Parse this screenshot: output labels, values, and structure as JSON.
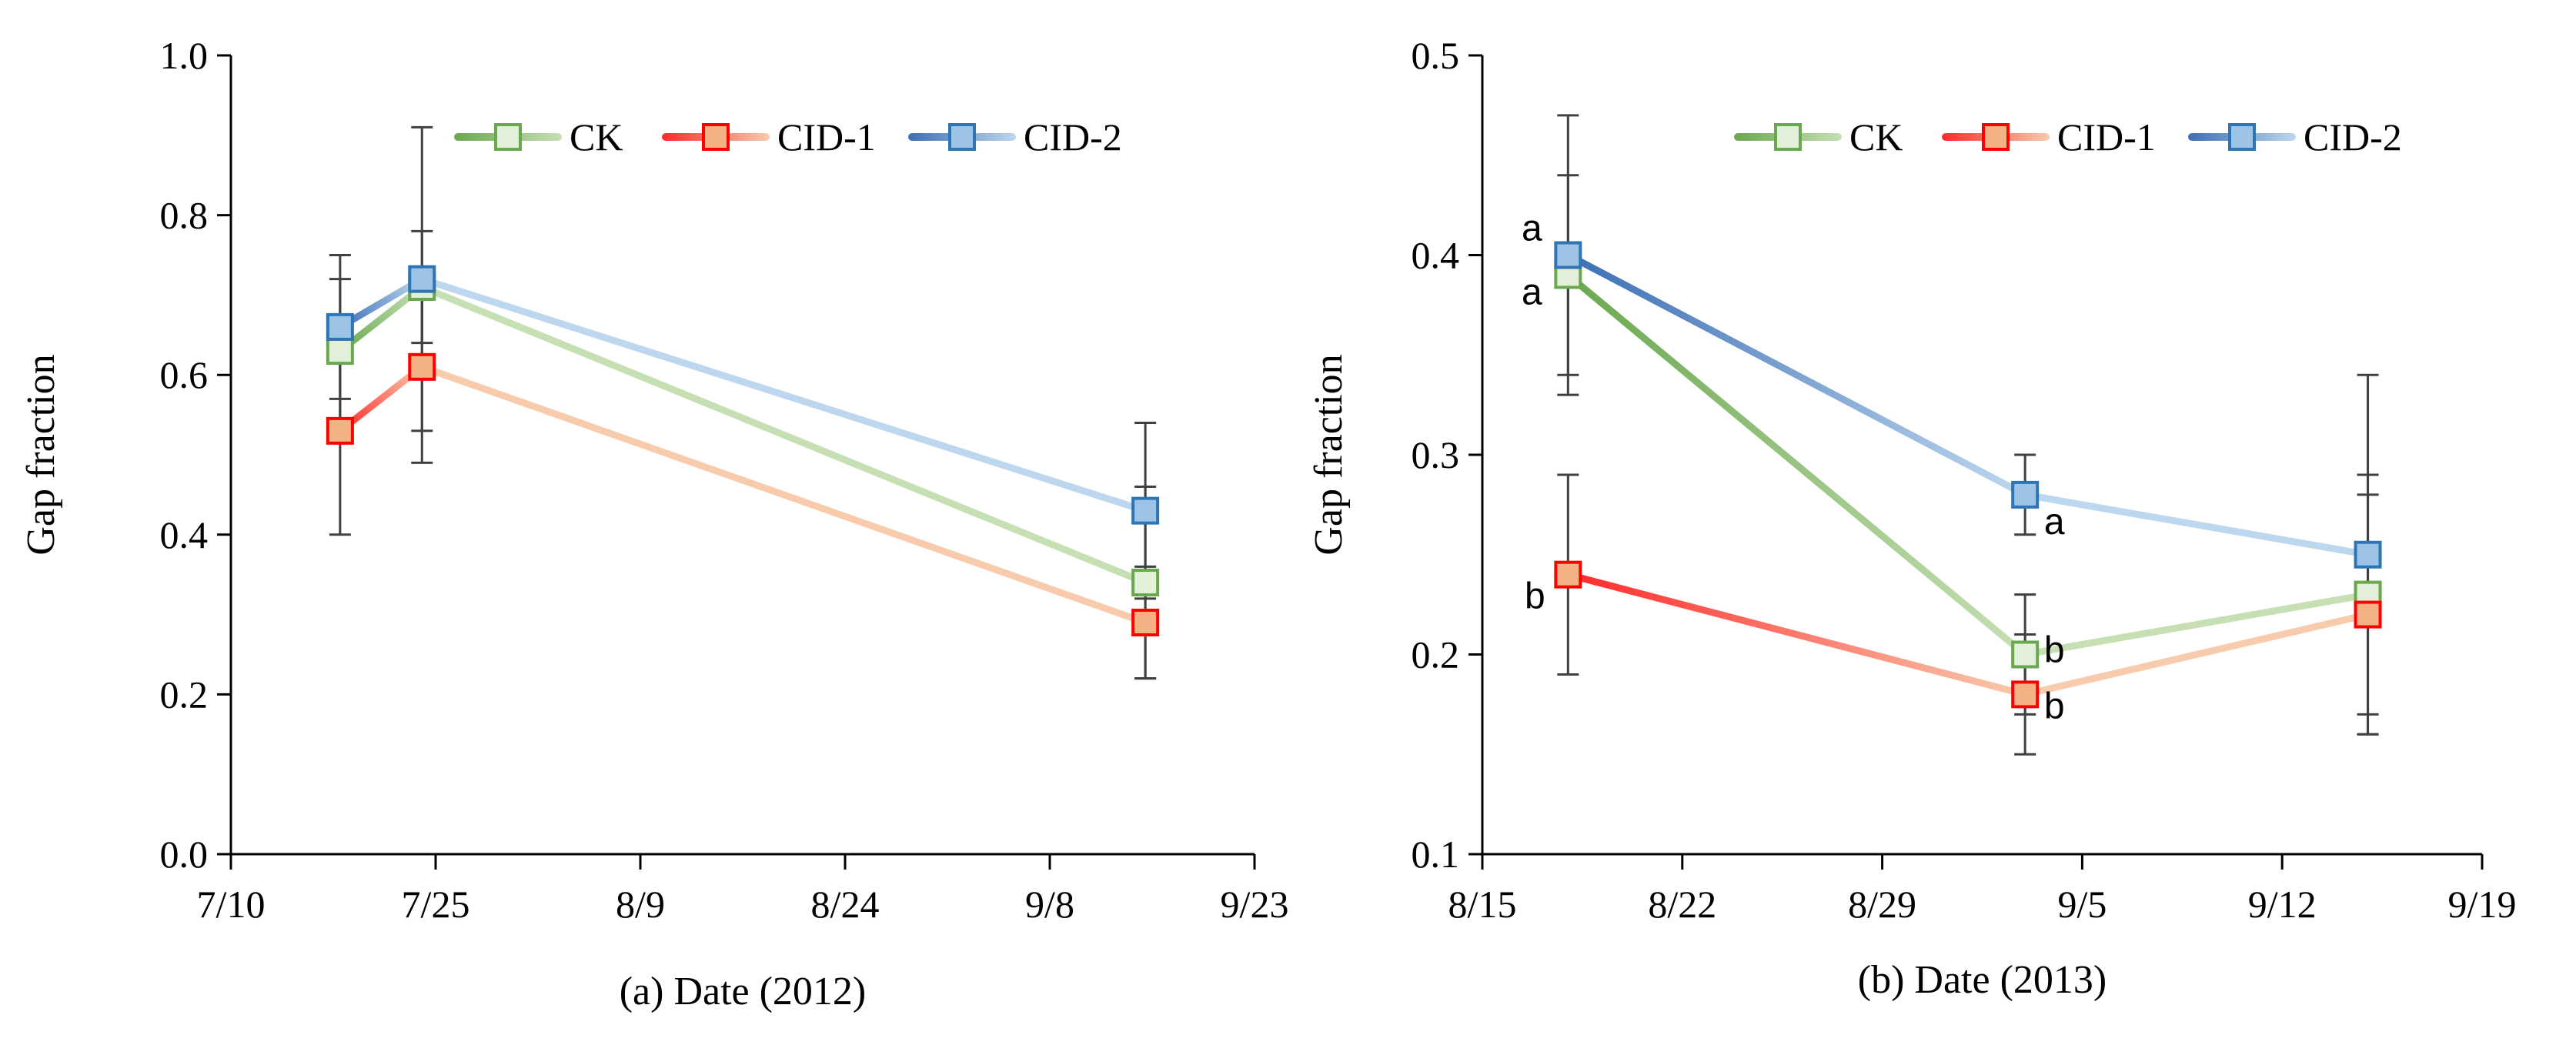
{
  "chart_data": [
    {
      "type": "line",
      "panel": "a",
      "xlabel": "(a) Date (2012)",
      "ylabel": "Gap fraction",
      "xlim": [
        "7/10",
        "9/23"
      ],
      "x_ticks": [
        "7/10",
        "7/25",
        "8/9",
        "8/24",
        "9/8",
        "9/23"
      ],
      "ylim": [
        0.0,
        1.0
      ],
      "y_ticks": [
        "0.0",
        "0.2",
        "0.4",
        "0.6",
        "0.8",
        "1.0"
      ],
      "grid": false,
      "legend_position": "top-right",
      "x": [
        "7/18",
        "7/24",
        "9/15"
      ],
      "series": [
        {
          "name": "CK",
          "values": [
            0.63,
            0.71,
            0.34
          ],
          "error": [
            0.09,
            0.07,
            0.12
          ]
        },
        {
          "name": "CID-1",
          "values": [
            0.53,
            0.61,
            0.29
          ],
          "error": [
            0.13,
            0.12,
            0.07
          ]
        },
        {
          "name": "CID-2",
          "values": [
            0.66,
            0.72,
            0.43
          ],
          "error": [
            0.09,
            0.19,
            0.11
          ]
        }
      ],
      "significance_labels": []
    },
    {
      "type": "line",
      "panel": "b",
      "xlabel": "(b) Date (2013)",
      "ylabel": "Gap fraction",
      "xlim": [
        "8/15",
        "9/19"
      ],
      "x_ticks": [
        "8/15",
        "8/22",
        "8/29",
        "9/5",
        "9/12",
        "9/19"
      ],
      "ylim": [
        0.1,
        0.5
      ],
      "y_ticks": [
        "0.1",
        "0.2",
        "0.3",
        "0.4",
        "0.5"
      ],
      "grid": false,
      "legend_position": "top-right",
      "x": [
        "8/18",
        "9/3",
        "9/15"
      ],
      "series": [
        {
          "name": "CK",
          "values": [
            0.39,
            0.2,
            0.23
          ],
          "error": [
            0.05,
            0.03,
            0.06
          ]
        },
        {
          "name": "CID-1",
          "values": [
            0.24,
            0.18,
            0.22
          ],
          "error": [
            0.05,
            0.03,
            0.06
          ]
        },
        {
          "name": "CID-2",
          "values": [
            0.4,
            0.28,
            0.25
          ],
          "error": [
            0.07,
            0.02,
            0.09
          ]
        }
      ],
      "significance_labels": [
        {
          "series": "CID-2",
          "point": 0,
          "text": "a"
        },
        {
          "series": "CK",
          "point": 0,
          "text": "a"
        },
        {
          "series": "CID-1",
          "point": 0,
          "text": "b"
        },
        {
          "series": "CID-2",
          "point": 1,
          "text": "a"
        },
        {
          "series": "CK",
          "point": 1,
          "text": "b"
        },
        {
          "series": "CID-1",
          "point": 1,
          "text": "b"
        }
      ]
    }
  ],
  "styles": {
    "series_colors": {
      "CK": {
        "dark": "#6aa84f",
        "light": "#c6e0b4",
        "marker_fill": "#e2efd9",
        "marker_stroke": "#6aa84f"
      },
      "CID-1": {
        "dark": "#ff2a2a",
        "light": "#f8cbad",
        "marker_fill": "#f4b183",
        "marker_stroke": "#ff0000"
      },
      "CID-2": {
        "dark": "#3d6fb5",
        "light": "#bdd7ee",
        "marker_fill": "#9dc3e6",
        "marker_stroke": "#2e75b6"
      }
    },
    "errorbar_color": "#404040",
    "axis_color": "#000000"
  }
}
